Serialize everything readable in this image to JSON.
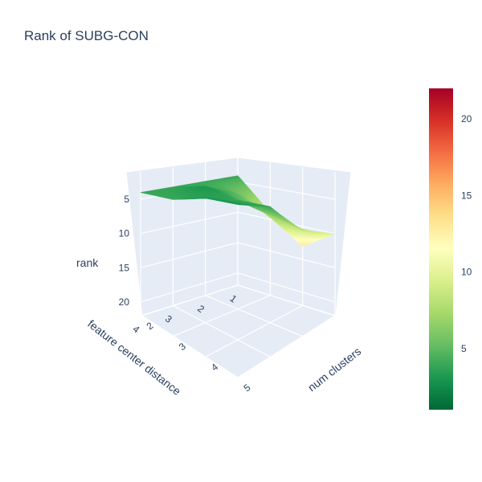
{
  "chart_data": {
    "type": "surface",
    "title": "Rank of SUBG-CON",
    "xlabel": "num clusters",
    "ylabel": "feature center distance",
    "zlabel": "rank",
    "x": [
      2,
      3,
      4,
      5
    ],
    "y": [
      1,
      2,
      3,
      4
    ],
    "z": [
      [
        4,
        4,
        4,
        4
      ],
      [
        9,
        5,
        3,
        4
      ],
      [
        13,
        7,
        4,
        3
      ],
      [
        10,
        8,
        4,
        3
      ]
    ],
    "x_ticks": [
      "2",
      "3",
      "4",
      "5"
    ],
    "y_ticks": [
      "1",
      "2",
      "3",
      "4"
    ],
    "z_ticks": [
      "5",
      "10",
      "15",
      "20"
    ],
    "z_range": [
      22,
      1
    ],
    "z_reversed": true,
    "colorscale": "RdYlGn reversed",
    "colorbar": {
      "range": [
        1,
        22
      ],
      "ticks": [
        "5",
        "10",
        "15",
        "20"
      ]
    }
  }
}
